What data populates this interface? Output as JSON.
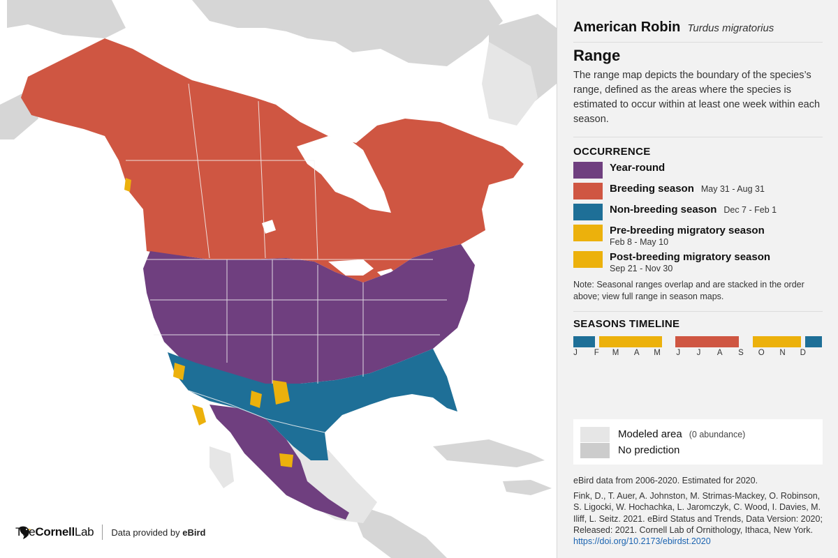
{
  "colors": {
    "year_round": "#6f3f7f",
    "breeding": "#cf5642",
    "nonbreeding": "#1e6f97",
    "prebreeding": "#ecb10c",
    "postbreeding": "#ecb10c",
    "modeled": "#e6e6e6",
    "no_prediction": "#cccccc",
    "land": "#d4d4d4",
    "boundary": "#f5f5f5"
  },
  "map": {
    "brand_prefix": "The",
    "brand_bold": "Cornell",
    "brand_suffix": "Lab",
    "brand_icon": "bird-icon",
    "provided_prefix": "Data provided by",
    "provided_bold": "eBird"
  },
  "species": {
    "common_name": "American Robin",
    "scientific_name": "Turdus migratorius"
  },
  "range": {
    "title": "Range",
    "description": "The range map depicts the boundary of the species’s range, defined as the areas where the species is estimated to occur within at least one week within each season."
  },
  "occurrence": {
    "title": "OCCURRENCE",
    "items": [
      {
        "label": "Year-round",
        "dates": ""
      },
      {
        "label": "Breeding season",
        "dates": "May 31 - Aug 31"
      },
      {
        "label": "Non-breeding season",
        "dates": "Dec 7 - Feb 1"
      },
      {
        "label": "Pre-breeding migratory season",
        "dates": "Feb 8 - May 10"
      },
      {
        "label": "Post-breeding migratory season",
        "dates": "Sep 21 - Nov 30"
      }
    ],
    "note": "Note: Seasonal ranges overlap and are stacked in the order above; view full range in season maps."
  },
  "timeline": {
    "title": "SEASONS TIMELINE",
    "months": [
      "J",
      "F",
      "M",
      "A",
      "M",
      "J",
      "J",
      "A",
      "S",
      "O",
      "N",
      "D"
    ],
    "segments": [
      {
        "season": "nonbreeding",
        "start_day": 1,
        "end_day": 32
      },
      {
        "season": "prebreeding",
        "start_day": 39,
        "end_day": 130
      },
      {
        "season": "breeding",
        "start_day": 151,
        "end_day": 243
      },
      {
        "season": "postbreeding",
        "start_day": 264,
        "end_day": 334
      },
      {
        "season": "nonbreeding",
        "start_day": 341,
        "end_day": 365
      }
    ]
  },
  "abundance": {
    "modeled_label": "Modeled area",
    "modeled_sub": "(0 abundance)",
    "no_prediction_label": "No prediction"
  },
  "data_info": "eBird data from 2006-2020. Estimated for 2020.",
  "citation": {
    "text": "Fink, D., T. Auer, A. Johnston, M. Strimas-Mackey, O. Robinson, S. Ligocki, W. Hochachka, L. Jaromczyk, C. Wood, I. Davies, M. Iliff, L. Seitz. 2021. eBird Status and Trends, Data Version: 2020; Released: 2021. Cornell Lab of Ornithology, Ithaca, New York.",
    "link": "https://doi.org/10.2173/ebirdst.2020"
  }
}
